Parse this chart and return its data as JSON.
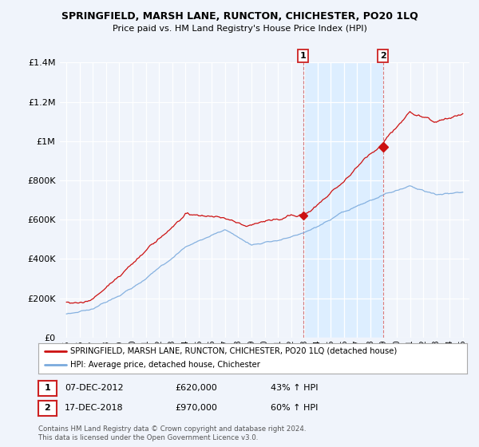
{
  "title": "SPRINGFIELD, MARSH LANE, RUNCTON, CHICHESTER, PO20 1LQ",
  "subtitle": "Price paid vs. HM Land Registry's House Price Index (HPI)",
  "legend_line1": "SPRINGFIELD, MARSH LANE, RUNCTON, CHICHESTER, PO20 1LQ (detached house)",
  "legend_line2": "HPI: Average price, detached house, Chichester",
  "annotation1_date": "07-DEC-2012",
  "annotation1_price": "£620,000",
  "annotation1_hpi": "43% ↑ HPI",
  "annotation1_year": 2012.92,
  "annotation1_value": 620000,
  "annotation2_date": "17-DEC-2018",
  "annotation2_price": "£970,000",
  "annotation2_hpi": "60% ↑ HPI",
  "annotation2_year": 2018.96,
  "annotation2_value": 970000,
  "footnote": "Contains HM Land Registry data © Crown copyright and database right 2024.\nThis data is licensed under the Open Government Licence v3.0.",
  "background_color": "#f0f4fb",
  "plot_bg_color": "#f0f4fb",
  "red_color": "#cc1111",
  "blue_color": "#7aaadd",
  "highlight_bg": "#ddeeff",
  "ylim": [
    0,
    1400000
  ],
  "yticks": [
    0,
    200000,
    400000,
    600000,
    800000,
    1000000,
    1200000,
    1400000
  ],
  "ytick_labels": [
    "£0",
    "£200K",
    "£400K",
    "£600K",
    "£800K",
    "£1M",
    "£1.2M",
    "£1.4M"
  ],
  "xmin": 1994.5,
  "xmax": 2025.5
}
